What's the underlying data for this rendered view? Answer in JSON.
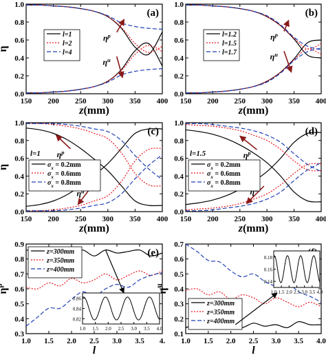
{
  "chart_data": [
    {
      "type": "line",
      "panel_label": "(a)",
      "xlabel": "z(mm)",
      "ylabel": "η",
      "xlim": [
        150,
        400
      ],
      "ylim": [
        0,
        1.0
      ],
      "xticks": [
        "150",
        "200",
        "250",
        "300",
        "350",
        "400"
      ],
      "yticks": [
        "0.0",
        "0.2",
        "0.4",
        "0.6",
        "0.8",
        "1.0"
      ],
      "legend": {
        "position": "left",
        "entries": [
          "l=1",
          "l=2",
          "l=4"
        ]
      },
      "annotations": [
        {
          "text": "η",
          "sup": "p",
          "x": 310,
          "y": 0.64,
          "arrow_to": [
            330,
            0.83
          ]
        },
        {
          "text": "η",
          "sup": "u",
          "x": 310,
          "y": 0.37,
          "arrow_to": [
            327,
            0.18
          ]
        }
      ],
      "x": [
        150,
        175,
        200,
        225,
        250,
        275,
        300,
        325,
        350,
        375,
        400
      ],
      "series": [
        {
          "name": "l=1",
          "color": "#000000",
          "dash": "",
          "values": [
            0.99,
            0.99,
            0.98,
            0.97,
            0.95,
            0.92,
            0.86,
            0.73,
            0.52,
            0.44,
            0.69
          ]
        },
        {
          "name": "l=1",
          "color": "#000000",
          "dash": "",
          "values": [
            0.01,
            0.01,
            0.02,
            0.03,
            0.05,
            0.08,
            0.14,
            0.27,
            0.48,
            0.56,
            0.31
          ]
        },
        {
          "name": "l=2",
          "color": "#e8141c",
          "dash": "2,2",
          "values": [
            0.99,
            0.99,
            0.98,
            0.97,
            0.95,
            0.92,
            0.86,
            0.74,
            0.56,
            0.46,
            0.53
          ]
        },
        {
          "name": "l=2",
          "color": "#e8141c",
          "dash": "2,2",
          "values": [
            0.01,
            0.01,
            0.02,
            0.03,
            0.05,
            0.08,
            0.14,
            0.26,
            0.44,
            0.54,
            0.47
          ]
        },
        {
          "name": "l=4",
          "color": "#1f3fb5",
          "dash": "6,3",
          "values": [
            0.99,
            0.99,
            0.98,
            0.97,
            0.95,
            0.92,
            0.87,
            0.79,
            0.75,
            0.73,
            0.72
          ]
        },
        {
          "name": "l=4",
          "color": "#1f3fb5",
          "dash": "6,3",
          "values": [
            0.01,
            0.01,
            0.02,
            0.03,
            0.05,
            0.08,
            0.13,
            0.21,
            0.25,
            0.27,
            0.28
          ]
        }
      ]
    },
    {
      "type": "line",
      "panel_label": "(b)",
      "xlabel": "z(mm)",
      "ylabel": "",
      "xlim": [
        150,
        400
      ],
      "ylim": [
        0,
        1.0
      ],
      "xticks": [
        "150",
        "200",
        "250",
        "300",
        "350",
        "400"
      ],
      "yticks": [
        "0.0",
        "0.2",
        "0.4",
        "0.6",
        "0.8",
        "1.0"
      ],
      "legend": {
        "position": "left",
        "entries": [
          "l=1.2",
          "l=1.5",
          "l=1.7"
        ]
      },
      "annotations": [
        {
          "text": "η",
          "sup": "p",
          "x": 325,
          "y": 0.65,
          "arrow_to": [
            340,
            0.82
          ]
        },
        {
          "text": "η",
          "sup": "u",
          "x": 325,
          "y": 0.43,
          "arrow_to": [
            345,
            0.24
          ]
        }
      ],
      "x": [
        150,
        175,
        200,
        225,
        250,
        275,
        300,
        325,
        350,
        375,
        400
      ],
      "series": [
        {
          "name": "l=1.2",
          "color": "#000000",
          "dash": "",
          "values": [
            0.99,
            0.99,
            0.98,
            0.97,
            0.95,
            0.92,
            0.86,
            0.76,
            0.61,
            0.43,
            0.4
          ]
        },
        {
          "name": "l=1.2",
          "color": "#000000",
          "dash": "",
          "values": [
            0.01,
            0.01,
            0.02,
            0.03,
            0.05,
            0.08,
            0.14,
            0.24,
            0.39,
            0.57,
            0.6
          ]
        },
        {
          "name": "l=1.5",
          "color": "#e8141c",
          "dash": "2,2",
          "values": [
            0.99,
            0.99,
            0.98,
            0.97,
            0.95,
            0.92,
            0.86,
            0.76,
            0.62,
            0.5,
            0.56
          ]
        },
        {
          "name": "l=1.5",
          "color": "#e8141c",
          "dash": "2,2",
          "values": [
            0.01,
            0.01,
            0.02,
            0.03,
            0.05,
            0.08,
            0.14,
            0.24,
            0.38,
            0.5,
            0.44
          ]
        },
        {
          "name": "l=1.7",
          "color": "#1f3fb5",
          "dash": "6,3",
          "values": [
            0.99,
            0.99,
            0.98,
            0.97,
            0.95,
            0.92,
            0.87,
            0.77,
            0.63,
            0.53,
            0.49
          ]
        },
        {
          "name": "l=1.7",
          "color": "#1f3fb5",
          "dash": "6,3",
          "values": [
            0.01,
            0.01,
            0.02,
            0.03,
            0.05,
            0.08,
            0.13,
            0.23,
            0.37,
            0.47,
            0.51
          ]
        }
      ]
    },
    {
      "type": "line",
      "panel_label": "(c)",
      "xlabel": "z(mm)",
      "ylabel": "η",
      "xlim": [
        150,
        400
      ],
      "ylim": [
        0,
        1.0
      ],
      "xticks": [
        "150",
        "200",
        "250",
        "300",
        "350",
        "400"
      ],
      "yticks": [
        "0.0",
        "0.2",
        "0.4",
        "0.6",
        "0.8",
        "1.0"
      ],
      "legend": {
        "position": "left",
        "title": "l=1",
        "entries": [
          "σ",
          "σ",
          "σ"
        ],
        "entry_subs": [
          "x",
          "x",
          "x"
        ],
        "entry_tails": [
          " = 0.2mm",
          " = 0.6mm",
          " = 0.8mm"
        ]
      },
      "annotations": [
        {
          "text": "η",
          "sup": "p",
          "x": 225,
          "y": 0.66,
          "arrow_to": [
            205,
            0.86
          ]
        },
        {
          "text": "η",
          "sup": "u",
          "x": 262,
          "y": 0.22,
          "arrow_to": [
            245,
            0.08
          ]
        }
      ],
      "x": [
        150,
        175,
        200,
        225,
        250,
        275,
        300,
        325,
        350,
        375,
        400
      ],
      "series": [
        {
          "name": "σx = 0.2mm",
          "color": "#000000",
          "dash": "",
          "values": [
            0.94,
            0.92,
            0.88,
            0.81,
            0.71,
            0.59,
            0.46,
            0.29,
            0.12,
            0.07,
            0.07
          ]
        },
        {
          "name": "σx = 0.2mm",
          "color": "#000000",
          "dash": "",
          "values": [
            0.06,
            0.08,
            0.12,
            0.19,
            0.29,
            0.41,
            0.54,
            0.71,
            0.88,
            0.93,
            0.93
          ]
        },
        {
          "name": "σx = 0.6mm",
          "color": "#e8141c",
          "dash": "2,2",
          "values": [
            0.99,
            0.99,
            0.98,
            0.96,
            0.93,
            0.88,
            0.82,
            0.66,
            0.43,
            0.3,
            0.29
          ]
        },
        {
          "name": "σx = 0.6mm",
          "color": "#e8141c",
          "dash": "2,2",
          "values": [
            0.01,
            0.01,
            0.02,
            0.04,
            0.07,
            0.12,
            0.18,
            0.34,
            0.57,
            0.7,
            0.71
          ]
        },
        {
          "name": "σx = 0.8mm",
          "color": "#1f3fb5",
          "dash": "6,3",
          "values": [
            0.99,
            0.99,
            0.99,
            0.98,
            0.96,
            0.93,
            0.9,
            0.8,
            0.63,
            0.48,
            0.36
          ]
        },
        {
          "name": "σx = 0.8mm",
          "color": "#1f3fb5",
          "dash": "6,3",
          "values": [
            0.01,
            0.01,
            0.01,
            0.02,
            0.04,
            0.07,
            0.1,
            0.2,
            0.37,
            0.52,
            0.64
          ]
        }
      ]
    },
    {
      "type": "line",
      "panel_label": "(d)",
      "xlabel": "z(mm)",
      "ylabel": "",
      "xlim": [
        150,
        400
      ],
      "ylim": [
        0,
        1.0
      ],
      "xticks": [
        "150",
        "200",
        "250",
        "300",
        "350",
        "400"
      ],
      "yticks": [
        "0.0",
        "0.2",
        "0.4",
        "0.6",
        "0.8",
        "1.0"
      ],
      "legend": {
        "position": "left",
        "title": "l=1.5",
        "entries": [
          "σ",
          "σ",
          "σ"
        ],
        "entry_subs": [
          "x",
          "x",
          "x"
        ],
        "entry_tails": [
          " = 0.2mm",
          " = 0.6mm",
          " = 0.8mm"
        ]
      },
      "annotations": [
        {
          "text": "η",
          "sup": "p",
          "x": 275,
          "y": 0.65,
          "arrow_to": [
            250,
            0.85
          ]
        },
        {
          "text": "η",
          "sup": "u",
          "x": 288,
          "y": 0.24,
          "arrow_to": [
            262,
            0.09
          ]
        }
      ],
      "x": [
        150,
        175,
        200,
        225,
        250,
        275,
        300,
        325,
        350,
        375,
        400
      ],
      "series": [
        {
          "name": "σx = 0.2mm",
          "color": "#000000",
          "dash": "",
          "values": [
            0.92,
            0.9,
            0.87,
            0.82,
            0.75,
            0.66,
            0.55,
            0.4,
            0.22,
            0.12,
            0.11
          ]
        },
        {
          "name": "σx = 0.2mm",
          "color": "#000000",
          "dash": "",
          "values": [
            0.08,
            0.1,
            0.13,
            0.18,
            0.25,
            0.34,
            0.45,
            0.6,
            0.78,
            0.88,
            0.89
          ]
        },
        {
          "name": "σx = 0.6mm",
          "color": "#e8141c",
          "dash": "2,2",
          "values": [
            0.98,
            0.97,
            0.96,
            0.94,
            0.91,
            0.86,
            0.8,
            0.7,
            0.57,
            0.47,
            0.46
          ]
        },
        {
          "name": "σx = 0.6mm",
          "color": "#e8141c",
          "dash": "2,2",
          "values": [
            0.02,
            0.03,
            0.04,
            0.06,
            0.09,
            0.14,
            0.2,
            0.3,
            0.43,
            0.53,
            0.54
          ]
        },
        {
          "name": "σx = 0.8mm",
          "color": "#1f3fb5",
          "dash": "6,3",
          "values": [
            0.99,
            0.99,
            0.98,
            0.96,
            0.94,
            0.91,
            0.86,
            0.78,
            0.65,
            0.53,
            0.45
          ]
        },
        {
          "name": "σx = 0.8mm",
          "color": "#1f3fb5",
          "dash": "6,3",
          "values": [
            0.01,
            0.01,
            0.02,
            0.04,
            0.06,
            0.09,
            0.14,
            0.22,
            0.35,
            0.47,
            0.55
          ]
        }
      ]
    },
    {
      "type": "line",
      "panel_label": "(e)",
      "xlabel": "l",
      "ylabel": "η",
      "ylabel_sup": "p",
      "xlim": [
        1.0,
        4.0
      ],
      "ylim": [
        0.3,
        0.9
      ],
      "xticks": [
        "1.0",
        "1.5",
        "2.0",
        "2.5",
        "3.0",
        "3.5",
        "4."
      ],
      "yticks": [
        "0.3",
        "0.4",
        "0.5",
        "0.6",
        "0.7",
        "0.8",
        "0.9"
      ],
      "legend": {
        "position": "top-left",
        "entries": [
          "z=300mm",
          "z=350mm",
          "z=400mm"
        ]
      },
      "inset": {
        "xlim": [
          1.0,
          4.0
        ],
        "ylim": [
          0.81,
          0.87
        ],
        "xticks": [
          "1.0",
          "1.5",
          "2.0",
          "2.5",
          "3.0",
          "3.5",
          "4.0"
        ],
        "yticks": [
          "0.82",
          "0.84",
          "0.86"
        ]
      },
      "x": [
        1.0,
        1.25,
        1.5,
        1.75,
        2.0,
        2.25,
        2.5,
        2.75,
        3.0,
        3.25,
        3.5,
        3.75,
        4.0
      ],
      "series": [
        {
          "name": "z=300mm",
          "color": "#000000",
          "dash": "",
          "values": [
            0.86,
            0.85,
            0.86,
            0.83,
            0.85,
            0.86,
            0.82,
            0.86,
            0.84,
            0.85,
            0.86,
            0.82,
            0.84
          ]
        },
        {
          "name": "z=350mm",
          "color": "#e8141c",
          "dash": "2,2",
          "values": [
            0.61,
            0.6,
            0.64,
            0.62,
            0.67,
            0.64,
            0.66,
            0.7,
            0.66,
            0.69,
            0.72,
            0.69,
            0.72
          ]
        },
        {
          "name": "z=400mm",
          "color": "#1f3fb5",
          "dash": "6,3",
          "values": [
            0.35,
            0.41,
            0.47,
            0.47,
            0.53,
            0.58,
            0.55,
            0.6,
            0.63,
            0.61,
            0.66,
            0.69,
            0.71
          ]
        }
      ]
    },
    {
      "type": "line",
      "panel_label": "(f)",
      "xlabel": "l",
      "ylabel": "η",
      "ylabel_sup": "u",
      "xlim": [
        1.0,
        4.0
      ],
      "ylim": [
        0.1,
        0.7
      ],
      "xticks": [
        "1.0",
        "1.5",
        "2.0",
        "2.5",
        "3.0",
        "3.5",
        "4.0"
      ],
      "yticks": [
        "0.1",
        "0.2",
        "0.3",
        "0.4",
        "0.5",
        "0.6",
        "0.7"
      ],
      "legend": {
        "position": "bottom-left",
        "entries": [
          "z=300mm",
          "z=350mm",
          "z=400mm"
        ]
      },
      "inset": {
        "xlim": [
          1.0,
          4.0
        ],
        "ylim": [
          0.13,
          0.19
        ],
        "xticks": [
          "1.0",
          "1.5",
          "2.0",
          "2.5",
          "3.0",
          "3.5",
          "4.0"
        ],
        "yticks": [
          "0.14",
          "0.16",
          "0.18"
        ]
      },
      "x": [
        1.0,
        1.25,
        1.5,
        1.75,
        2.0,
        2.25,
        2.5,
        2.75,
        3.0,
        3.25,
        3.5,
        3.75,
        4.0
      ],
      "series": [
        {
          "name": "z=300mm",
          "color": "#000000",
          "dash": "",
          "values": [
            0.14,
            0.16,
            0.14,
            0.17,
            0.15,
            0.14,
            0.17,
            0.15,
            0.16,
            0.14,
            0.18,
            0.16,
            0.16
          ]
        },
        {
          "name": "z=350mm",
          "color": "#e8141c",
          "dash": "2,2",
          "values": [
            0.39,
            0.4,
            0.36,
            0.38,
            0.33,
            0.36,
            0.34,
            0.3,
            0.34,
            0.31,
            0.28,
            0.31,
            0.28
          ]
        },
        {
          "name": "z=400mm",
          "color": "#1f3fb5",
          "dash": "6,3",
          "values": [
            0.7,
            0.65,
            0.59,
            0.58,
            0.52,
            0.48,
            0.5,
            0.45,
            0.42,
            0.44,
            0.38,
            0.35,
            0.31
          ]
        }
      ]
    }
  ]
}
